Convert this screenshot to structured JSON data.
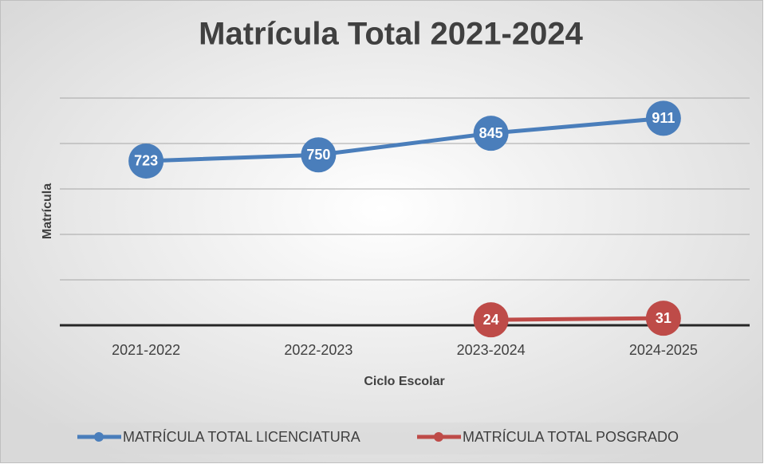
{
  "chart_data": {
    "type": "line",
    "title": "Matrícula Total 2021-2024",
    "x_label": "Ciclo Escolar",
    "y_label": "Matrícula",
    "categories": [
      "2021-2022",
      "2022-2023",
      "2023-2024",
      "2024-2025"
    ],
    "series": [
      {
        "name": "MATRÍCULA TOTAL LICENCIATURA",
        "color": "#4a7ebb",
        "values": [
          723,
          750,
          845,
          911
        ]
      },
      {
        "name": "MATRÍCULA TOTAL POSGRADO",
        "color": "#be4b48",
        "values": [
          null,
          null,
          24,
          31
        ]
      }
    ],
    "ylim": [
      0,
      1000
    ],
    "yticks": [
      0,
      200,
      400,
      600,
      800,
      1000
    ],
    "grid": true,
    "legend": "bottom"
  }
}
